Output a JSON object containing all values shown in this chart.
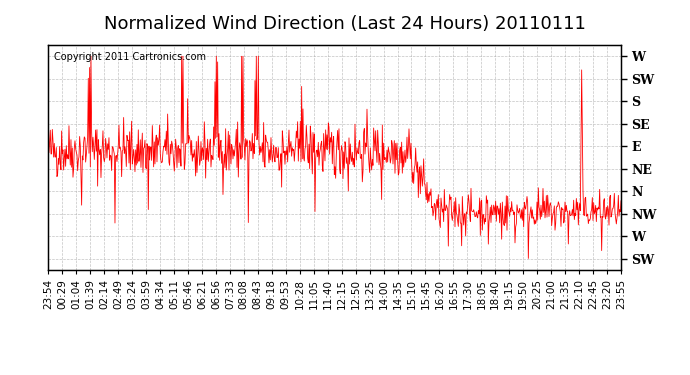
{
  "title": "Normalized Wind Direction (Last 24 Hours) 20110111",
  "copyright": "Copyright 2011 Cartronics.com",
  "line_color": "#ff0000",
  "background_color": "#ffffff",
  "plot_bg_color": "#ffffff",
  "grid_color": "#aaaaaa",
  "ytick_labels": [
    "W",
    "SW",
    "S",
    "SE",
    "E",
    "NE",
    "N",
    "NW",
    "W",
    "SW"
  ],
  "ytick_values": [
    10,
    9,
    8,
    7,
    6,
    5,
    4,
    3,
    2,
    1
  ],
  "ylim": [
    0.5,
    10.5
  ],
  "xtick_labels": [
    "23:54",
    "00:29",
    "01:04",
    "01:39",
    "02:14",
    "02:49",
    "03:24",
    "03:59",
    "04:34",
    "05:11",
    "05:46",
    "06:21",
    "06:56",
    "07:33",
    "08:08",
    "08:43",
    "09:18",
    "09:53",
    "10:28",
    "11:05",
    "11:40",
    "12:15",
    "12:50",
    "13:25",
    "14:00",
    "14:35",
    "15:10",
    "15:45",
    "16:20",
    "16:55",
    "17:30",
    "18:05",
    "18:40",
    "19:15",
    "19:50",
    "20:25",
    "21:00",
    "21:35",
    "22:10",
    "22:45",
    "23:20",
    "23:55"
  ],
  "title_fontsize": 13,
  "copyright_fontsize": 7,
  "tick_fontsize": 7.5,
  "ytick_fontsize": 9
}
